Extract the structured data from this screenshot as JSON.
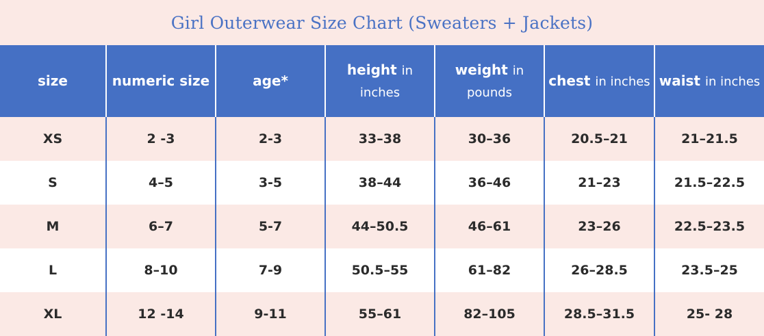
{
  "title": "Girl Outerwear Size Chart (Sweaters + Jackets)",
  "headers": [
    {
      "main": "size",
      "unit": ""
    },
    {
      "main": "numeric size",
      "unit": ""
    },
    {
      "main": "age*",
      "unit": ""
    },
    {
      "main": "height",
      "unit": "in inches"
    },
    {
      "main": "weight",
      "unit": "in pounds"
    },
    {
      "main": "chest",
      "unit": "in inches"
    },
    {
      "main": "waist",
      "unit": "in inches"
    }
  ],
  "rows": [
    [
      "XS",
      "2 -3",
      "2-3",
      "33–38",
      "30–36",
      "20.5–21",
      "21–21.5"
    ],
    [
      "S",
      "4–5",
      "3-5",
      "38–44",
      "36–46",
      "21–23",
      "21.5–22.5"
    ],
    [
      "M",
      "6–7",
      "5-7",
      "44–50.5",
      "46–61",
      "23–26",
      "22.5–23.5"
    ],
    [
      "L",
      "8–10",
      "7-9",
      "50.5–55",
      "61–82",
      "26–28.5",
      "23.5–25"
    ],
    [
      "XL",
      "12 -14",
      "9-11",
      "55–61",
      "82–105",
      "28.5–31.5",
      "25- 28"
    ]
  ],
  "colors": {
    "header_bg": "#4570c4",
    "title": "#4a72c4",
    "row_pink": "#fbe9e5",
    "row_white": "#ffffff",
    "text": "#2b2b2b"
  }
}
